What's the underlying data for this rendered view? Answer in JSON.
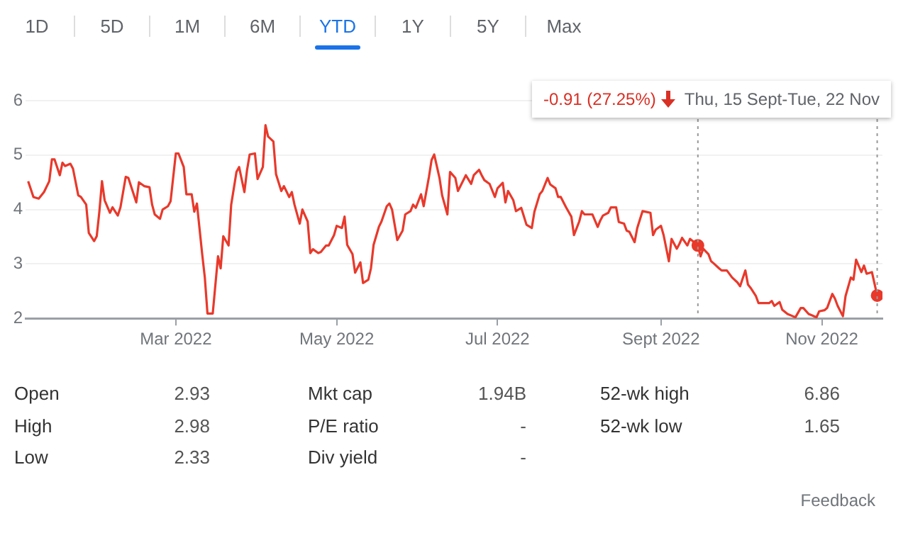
{
  "chart_data": {
    "type": "line",
    "x": [
      "2022-01-04",
      "2022-01-06",
      "2022-01-08",
      "2022-01-10",
      "2022-01-12",
      "2022-01-13",
      "2022-01-14",
      "2022-01-16",
      "2022-01-17",
      "2022-01-18",
      "2022-01-20",
      "2022-01-21",
      "2022-01-23",
      "2022-01-24",
      "2022-01-26",
      "2022-01-27",
      "2022-01-29",
      "2022-01-30",
      "2022-01-31",
      "2022-02-01",
      "2022-02-02",
      "2022-02-04",
      "2022-02-05",
      "2022-02-07",
      "2022-02-08",
      "2022-02-10",
      "2022-02-11",
      "2022-02-13",
      "2022-02-14",
      "2022-02-15",
      "2022-02-17",
      "2022-02-19",
      "2022-02-20",
      "2022-02-21",
      "2022-02-23",
      "2022-02-24",
      "2022-02-26",
      "2022-02-27",
      "2022-03-01",
      "2022-03-02",
      "2022-03-04",
      "2022-03-05",
      "2022-03-07",
      "2022-03-08",
      "2022-03-09",
      "2022-03-11",
      "2022-03-12",
      "2022-03-13",
      "2022-03-15",
      "2022-03-17",
      "2022-03-18",
      "2022-03-19",
      "2022-03-21",
      "2022-03-22",
      "2022-03-24",
      "2022-03-25",
      "2022-03-27",
      "2022-03-28",
      "2022-03-29",
      "2022-03-31",
      "2022-04-01",
      "2022-04-03",
      "2022-04-04",
      "2022-04-05",
      "2022-04-07",
      "2022-04-08",
      "2022-04-10",
      "2022-04-11",
      "2022-04-13",
      "2022-04-14",
      "2022-04-15",
      "2022-04-17",
      "2022-04-18",
      "2022-04-20",
      "2022-04-21",
      "2022-04-22",
      "2022-04-24",
      "2022-04-25",
      "2022-04-27",
      "2022-04-28",
      "2022-04-30",
      "2022-05-01",
      "2022-05-03",
      "2022-05-04",
      "2022-05-05",
      "2022-05-07",
      "2022-05-08",
      "2022-05-10",
      "2022-05-11",
      "2022-05-13",
      "2022-05-14",
      "2022-05-15",
      "2022-05-17",
      "2022-05-18",
      "2022-05-20",
      "2022-05-21",
      "2022-05-22",
      "2022-05-24",
      "2022-05-26",
      "2022-05-27",
      "2022-05-29",
      "2022-05-30",
      "2022-05-31",
      "2022-06-02",
      "2022-06-03",
      "2022-06-05",
      "2022-06-06",
      "2022-06-07",
      "2022-06-09",
      "2022-06-10",
      "2022-06-12",
      "2022-06-13",
      "2022-06-15",
      "2022-06-16",
      "2022-06-19",
      "2022-06-21",
      "2022-06-22",
      "2022-06-24",
      "2022-06-25",
      "2022-06-26",
      "2022-06-28",
      "2022-06-30",
      "2022-07-01",
      "2022-07-03",
      "2022-07-04",
      "2022-07-05",
      "2022-07-07",
      "2022-07-08",
      "2022-07-10",
      "2022-07-12",
      "2022-07-14",
      "2022-07-15",
      "2022-07-17",
      "2022-07-18",
      "2022-07-20",
      "2022-07-21",
      "2022-07-23",
      "2022-07-24",
      "2022-07-25",
      "2022-07-27",
      "2022-07-29",
      "2022-07-30",
      "2022-08-01",
      "2022-08-02",
      "2022-08-03",
      "2022-08-05",
      "2022-08-06",
      "2022-08-08",
      "2022-08-09",
      "2022-08-10",
      "2022-08-12",
      "2022-08-13",
      "2022-08-15",
      "2022-08-16",
      "2022-08-18",
      "2022-08-19",
      "2022-08-20",
      "2022-08-22",
      "2022-08-23",
      "2022-08-25",
      "2022-08-26",
      "2022-08-28",
      "2022-08-29",
      "2022-08-30",
      "2022-09-01",
      "2022-09-02",
      "2022-09-04",
      "2022-09-05",
      "2022-09-07",
      "2022-09-08",
      "2022-09-09",
      "2022-09-11",
      "2022-09-12",
      "2022-09-15",
      "2022-09-16",
      "2022-09-17",
      "2022-09-19",
      "2022-09-20",
      "2022-09-21",
      "2022-09-23",
      "2022-09-24",
      "2022-09-26",
      "2022-09-28",
      "2022-09-30",
      "2022-10-01",
      "2022-10-03",
      "2022-10-04",
      "2022-10-05",
      "2022-10-07",
      "2022-10-08",
      "2022-10-10",
      "2022-10-12",
      "2022-10-13",
      "2022-10-14",
      "2022-10-16",
      "2022-10-17",
      "2022-10-19",
      "2022-10-21",
      "2022-10-22",
      "2022-10-24",
      "2022-10-25",
      "2022-10-27",
      "2022-10-28",
      "2022-10-30",
      "2022-10-31",
      "2022-11-02",
      "2022-11-03",
      "2022-11-05",
      "2022-11-06",
      "2022-11-07",
      "2022-11-09",
      "2022-11-10",
      "2022-11-12",
      "2022-11-13",
      "2022-11-14",
      "2022-11-16",
      "2022-11-17",
      "2022-11-18",
      "2022-11-20",
      "2022-11-22"
    ],
    "series": [
      {
        "color": "#e8392b",
        "marker": "none",
        "values": [
          4.52,
          4.23,
          4.2,
          4.32,
          4.52,
          4.92,
          4.92,
          4.63,
          4.86,
          4.8,
          4.84,
          4.75,
          4.26,
          4.23,
          4.09,
          3.57,
          3.42,
          3.51,
          3.96,
          4.52,
          4.17,
          3.94,
          4.04,
          3.89,
          4.04,
          4.6,
          4.58,
          4.28,
          4.13,
          4.5,
          4.43,
          4.41,
          4.09,
          3.91,
          3.83,
          4.0,
          4.06,
          4.15,
          5.03,
          5.03,
          4.78,
          4.28,
          4.28,
          3.96,
          4.11,
          3.18,
          2.75,
          2.09,
          2.09,
          3.14,
          2.92,
          3.51,
          3.34,
          4.09,
          4.69,
          4.78,
          4.32,
          4.72,
          5.01,
          5.03,
          4.56,
          4.78,
          5.55,
          5.34,
          5.25,
          4.65,
          4.34,
          4.43,
          4.23,
          4.32,
          4.09,
          3.74,
          4.0,
          3.78,
          3.2,
          3.27,
          3.2,
          3.22,
          3.34,
          3.34,
          3.53,
          3.7,
          3.66,
          3.87,
          3.35,
          3.18,
          2.84,
          3.03,
          2.65,
          2.71,
          2.92,
          3.35,
          3.68,
          3.78,
          4.06,
          4.11,
          4.0,
          3.44,
          3.61,
          3.91,
          3.97,
          4.09,
          4.03,
          4.28,
          4.06,
          4.6,
          4.91,
          5.01,
          4.58,
          4.26,
          3.91,
          4.69,
          4.58,
          4.34,
          4.63,
          4.47,
          4.63,
          4.73,
          4.63,
          4.54,
          4.47,
          4.23,
          4.39,
          4.49,
          4.13,
          4.34,
          4.17,
          3.97,
          4.03,
          3.72,
          3.66,
          3.96,
          4.28,
          4.34,
          4.58,
          4.46,
          4.39,
          4.23,
          4.23,
          4.04,
          3.87,
          3.53,
          3.78,
          3.97,
          3.91,
          3.91,
          3.91,
          3.68,
          3.8,
          3.89,
          3.94,
          4.04,
          4.04,
          3.77,
          3.74,
          3.61,
          3.59,
          3.4,
          3.66,
          3.97,
          3.96,
          3.94,
          3.53,
          3.63,
          3.7,
          3.53,
          3.05,
          3.46,
          3.28,
          3.37,
          3.48,
          3.34,
          3.46,
          3.34,
          3.14,
          3.28,
          3.18,
          3.05,
          3.01,
          2.92,
          2.88,
          2.88,
          2.75,
          2.66,
          2.59,
          2.88,
          2.62,
          2.56,
          2.41,
          2.28,
          2.28,
          2.28,
          2.32,
          2.23,
          2.3,
          2.16,
          2.08,
          2.04,
          2.02,
          2.19,
          2.19,
          2.08,
          2.06,
          2.02,
          2.13,
          2.15,
          2.19,
          2.45,
          2.36,
          2.23,
          2.04,
          2.41,
          2.75,
          2.71,
          3.08,
          2.85,
          2.97,
          2.82,
          2.85,
          2.42
        ]
      },
      {
        "type": "scatter",
        "color": "#e8392b",
        "marker": "circle",
        "x": [
          "2022-09-15",
          "2022-11-22"
        ],
        "values": [
          3.34,
          2.42
        ]
      }
    ],
    "xlim": [
      "2022-01-03",
      "2022-11-24"
    ],
    "xticks": [
      {
        "value": "2022-03-01",
        "label": "Mar 2022"
      },
      {
        "value": "2022-05-01",
        "label": "May 2022"
      },
      {
        "value": "2022-07-01",
        "label": "Jul 2022"
      },
      {
        "value": "2022-09-01",
        "label": "Sept 2022"
      },
      {
        "value": "2022-11-01",
        "label": "Nov 2022"
      }
    ],
    "ylim": [
      2,
      6
    ],
    "yticks": [
      2,
      3,
      4,
      5,
      6
    ],
    "grid": "y",
    "legend": false,
    "ref_lines": [
      {
        "axis": "x",
        "value": "2022-09-15",
        "label": null,
        "color": "#999999",
        "line_style": "dotted"
      },
      {
        "axis": "x",
        "value": "2022-11-22",
        "label": null,
        "color": "#999999",
        "line_style": "dotted"
      }
    ],
    "annotations": [
      "1D",
      "5D",
      "1M",
      "6M",
      "YTD",
      "1Y",
      "5Y",
      "Max",
      "-0.91 (27.25%)",
      "Thu, 15 Sept-Tue, 22 Nov",
      "Open",
      "2.93",
      "Mkt cap",
      "1.94B",
      "52-wk high",
      "6.86",
      "High",
      "2.98",
      "P/E ratio",
      "-",
      "52-wk low",
      "1.65",
      "Low",
      "2.33",
      "Div yield",
      "-",
      "Feedback"
    ]
  }
}
